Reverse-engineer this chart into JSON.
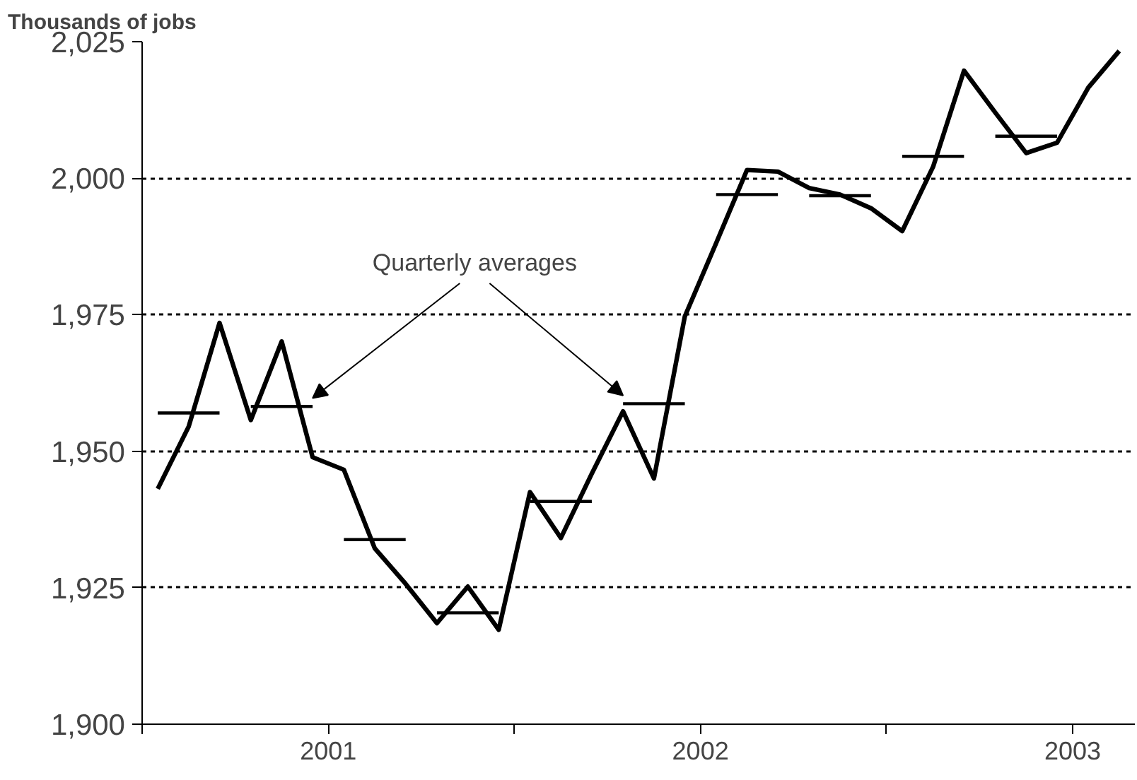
{
  "chart_data": {
    "type": "line",
    "ylabel": "Thousands of jobs",
    "annotations": [
      "Quarterly averages"
    ],
    "xlim": [
      2001,
      2003.667
    ],
    "xticks": [
      {
        "value": 2001,
        "label": null
      },
      {
        "value": 2001.5,
        "label": "2001"
      },
      {
        "value": 2002,
        "label": null
      },
      {
        "value": 2002.5,
        "label": "2002"
      },
      {
        "value": 2003,
        "label": null
      },
      {
        "value": 2003.5,
        "label": "2003"
      }
    ],
    "ylim": [
      1900,
      2025
    ],
    "yticks": [
      {
        "value": 1900,
        "label": "1,900"
      },
      {
        "value": 1925,
        "label": "1,925"
      },
      {
        "value": 1950,
        "label": "1,950"
      },
      {
        "value": 1975,
        "label": "1,975"
      },
      {
        "value": 2000,
        "label": "2,000"
      },
      {
        "value": 2025,
        "label": "2,025"
      }
    ],
    "grid": "y",
    "x": [
      2001.042,
      2001.125,
      2001.208,
      2001.292,
      2001.375,
      2001.458,
      2001.542,
      2001.625,
      2001.708,
      2001.792,
      2001.875,
      2001.958,
      2002.042,
      2002.125,
      2002.208,
      2002.292,
      2002.375,
      2002.458,
      2002.542,
      2002.625,
      2002.708,
      2002.792,
      2002.875,
      2002.958,
      2003.042,
      2003.125,
      2003.208,
      2003.292,
      2003.375,
      2003.458,
      2003.542,
      2003.625
    ],
    "series": [
      {
        "color": "#000000",
        "values": [
          1943.1,
          1954.5,
          1973.5,
          1955.7,
          1970.1,
          1948.9,
          1946.6,
          1932.2,
          1925.7,
          1918.5,
          1925.2,
          1917.3,
          1942.5,
          1934.1,
          1945.9,
          1957.3,
          1945.0,
          1974.7,
          1988.1,
          2001.5,
          2001.2,
          1998.2,
          1997.0,
          1994.5,
          1990.3,
          2002.1,
          2019.7,
          2012.0,
          2004.6,
          2006.5,
          2016.6,
          2023.3
        ]
      },
      {
        "color": "#000000",
        "x": [
          2001.042,
          2001.208,
          2001.25,
          2001.292,
          2001.458,
          2001.5,
          2001.542,
          2001.708,
          2001.75,
          2001.792,
          2001.958,
          2002.0,
          2002.042,
          2002.208,
          2002.25,
          2002.292,
          2002.458,
          2002.5,
          2002.542,
          2002.708,
          2002.75,
          2002.792,
          2002.958,
          2003.0,
          2003.042,
          2003.208,
          2003.25,
          2003.292,
          2003.458
        ],
        "values": [
          1957.0,
          1957.0,
          null,
          1958.2,
          1958.2,
          null,
          1933.8,
          1933.8,
          null,
          1920.4,
          1920.4,
          null,
          1940.8,
          1940.8,
          null,
          1958.7,
          1958.7,
          null,
          1997.0,
          1997.0,
          null,
          1996.8,
          1996.8,
          null,
          2004.0,
          2004.0,
          null,
          2007.7,
          2007.7
        ]
      }
    ]
  }
}
